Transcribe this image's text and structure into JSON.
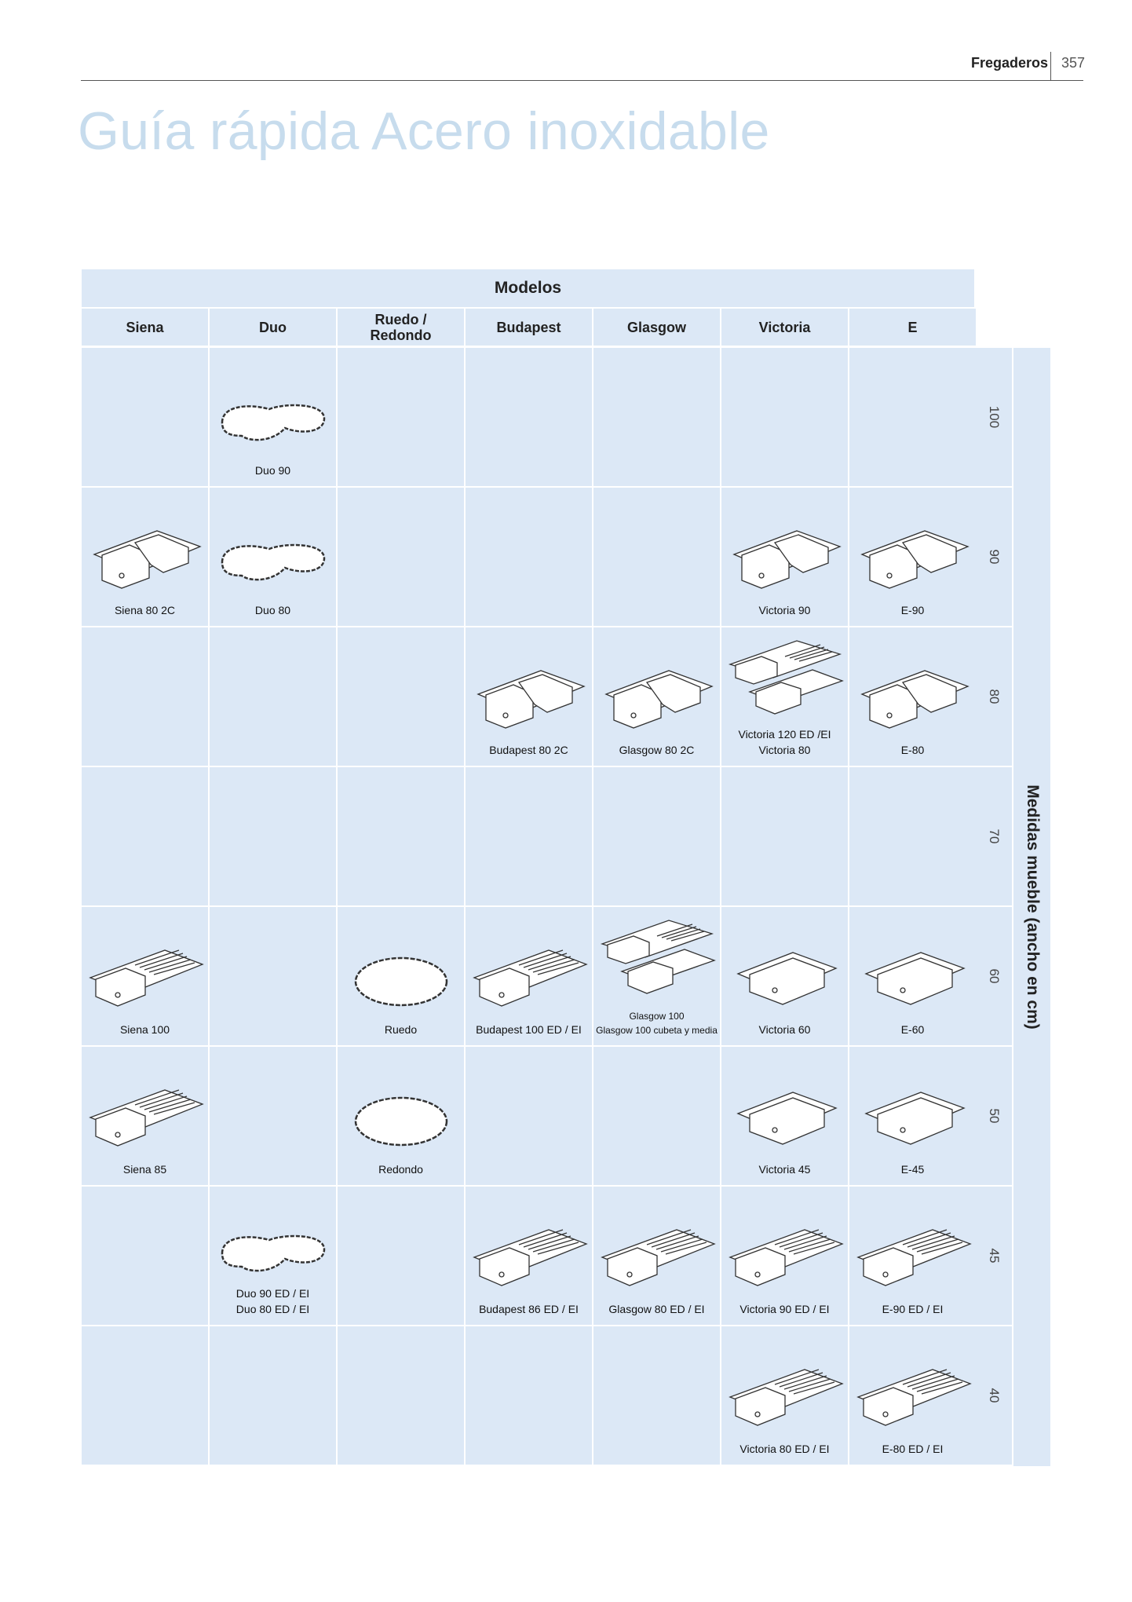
{
  "header": {
    "section": "Fregaderos",
    "page": "357"
  },
  "title": "Guía rápida Acero inoxidable",
  "table": {
    "models_heading": "Modelos",
    "columns": [
      "Siena",
      "Duo",
      "Ruedo /\nRedondo",
      "Budapest",
      "Glasgow",
      "Victoria",
      "E"
    ],
    "sizes": [
      "100",
      "90",
      "80",
      "70",
      "60",
      "50",
      "45",
      "40"
    ],
    "axis_label": "Medidas mueble (ancho en cm)",
    "rows": [
      [
        "",
        "Duo 90",
        "",
        "",
        "",
        "",
        ""
      ],
      [
        "Siena 80 2C",
        "Duo 80",
        "",
        "",
        "",
        "Victoria 90",
        "E-90"
      ],
      [
        "",
        "",
        "",
        "Budapest 80 2C",
        "Glasgow 80 2C",
        "Victoria 120 ED /EI\nVictoria 80",
        "E-80"
      ],
      [
        "",
        "",
        "",
        "",
        "",
        "",
        ""
      ],
      [
        "Siena 100",
        "",
        "Ruedo",
        "Budapest 100 ED / EI",
        "Glasgow 100\nGlasgow 100 cubeta y media",
        "Victoria 60",
        "E-60"
      ],
      [
        "Siena 85",
        "",
        "Redondo",
        "",
        "",
        "Victoria 45",
        "E-45"
      ],
      [
        "",
        "Duo 90 ED / EI\nDuo 80 ED / EI",
        "",
        "Budapest 86 ED / EI",
        "Glasgow 80 ED / EI",
        "Victoria 90 ED / EI",
        "E-90 ED / EI"
      ],
      [
        "",
        "",
        "",
        "",
        "",
        "Victoria 80 ED / EI",
        "E-80 ED / EI"
      ]
    ],
    "icons": [
      [
        "",
        "duo-sink-icon",
        "",
        "",
        "",
        "",
        ""
      ],
      [
        "double-sink-icon",
        "duo-sink-icon",
        "",
        "",
        "",
        "double-sink-icon",
        "double-sink-icon"
      ],
      [
        "",
        "",
        "",
        "double-sink-icon",
        "double-sink-icon",
        "stacked-sink-icon",
        "double-sink-icon"
      ],
      [
        "",
        "",
        "",
        "",
        "",
        "",
        ""
      ],
      [
        "drainer-sink-icon",
        "",
        "oval-sink-icon",
        "drainer-sink-icon",
        "stacked-sink-icon",
        "single-sink-icon",
        "single-sink-icon"
      ],
      [
        "drainer-sink-icon",
        "",
        "oval-sink-icon",
        "",
        "",
        "single-sink-icon",
        "single-sink-icon"
      ],
      [
        "",
        "duo-sink-icon",
        "",
        "drainer-sink-icon",
        "drainer-sink-icon",
        "drainer-sink-icon",
        "drainer-sink-icon"
      ],
      [
        "",
        "",
        "",
        "",
        "",
        "drainer-sink-icon",
        "drainer-sink-icon"
      ]
    ]
  }
}
